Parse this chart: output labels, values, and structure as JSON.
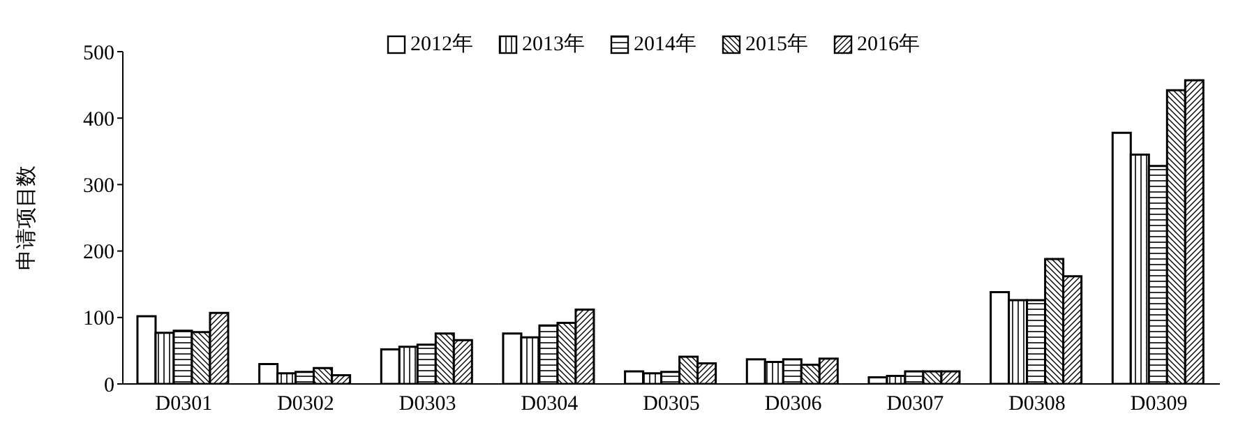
{
  "chart_data": {
    "type": "bar",
    "ylabel": "申请项目数",
    "categories": [
      "D0301",
      "D0302",
      "D0303",
      "D0304",
      "D0305",
      "D0306",
      "D0307",
      "D0308",
      "D0309"
    ],
    "series": [
      {
        "name": "2012年",
        "color": "#000000",
        "values": [
          102,
          30,
          52,
          76,
          19,
          37,
          10,
          138,
          378
        ]
      },
      {
        "name": "2013年",
        "color": "#000000",
        "values": [
          77,
          16,
          56,
          70,
          16,
          33,
          12,
          126,
          345
        ]
      },
      {
        "name": "2014年",
        "color": "#000000",
        "values": [
          80,
          18,
          59,
          88,
          18,
          37,
          19,
          126,
          328
        ]
      },
      {
        "name": "2015年",
        "color": "#000000",
        "values": [
          78,
          24,
          76,
          92,
          41,
          29,
          19,
          188,
          442
        ]
      },
      {
        "name": "2016年",
        "color": "#000000",
        "values": [
          107,
          13,
          66,
          112,
          31,
          38,
          19,
          162,
          457
        ]
      }
    ],
    "ylim": [
      0,
      500
    ],
    "yticks": [
      0,
      100,
      200,
      300,
      400,
      500
    ],
    "grid": false,
    "legend": "top"
  }
}
